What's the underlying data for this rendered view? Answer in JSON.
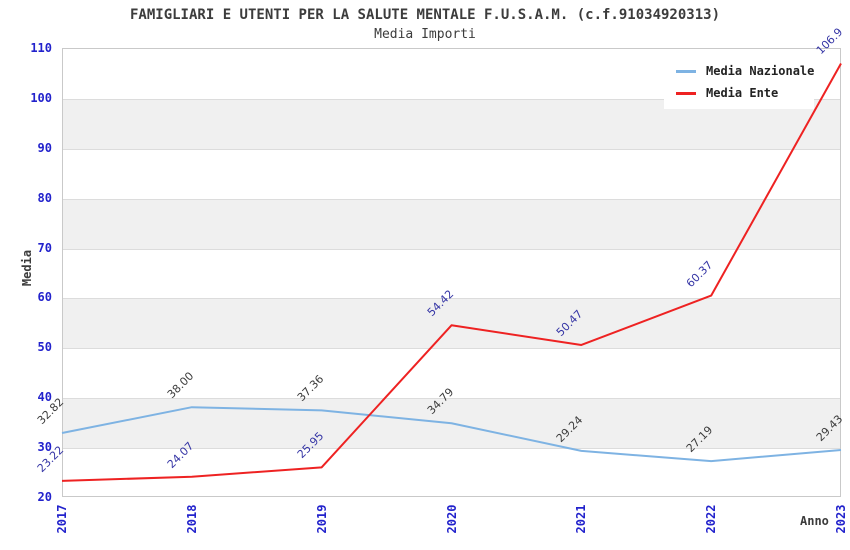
{
  "chart_data": {
    "type": "line",
    "title": "FAMIGLIARI E UTENTI PER LA SALUTE MENTALE F.U.S.A.M. (c.f.91034920313)",
    "subtitle": "Media Importi",
    "xlabel": "Anno",
    "ylabel": "Media",
    "x": [
      "2017",
      "2018",
      "2019",
      "2020",
      "2021",
      "2022",
      "2023"
    ],
    "ylim": [
      20,
      110
    ],
    "ytick_step": 10,
    "grid": "horizontal-bands",
    "legend_position": "top-right-inside",
    "tick_color": "#2222cc",
    "band_color": "#f0f0f0",
    "series": [
      {
        "name": "Media Nazionale",
        "color": "#7eb3e3",
        "label_color": "#3c3c3c",
        "values": [
          32.82,
          38.0,
          37.36,
          34.79,
          29.24,
          27.19,
          29.43
        ],
        "labels": [
          "32.82",
          "38.00",
          "37.36",
          "34.79",
          "29.24",
          "27.19",
          "29.43"
        ]
      },
      {
        "name": "Media Ente",
        "color": "#ee2222",
        "label_color": "#3535a5",
        "values": [
          23.22,
          24.07,
          25.95,
          54.42,
          50.47,
          60.37,
          106.9
        ],
        "labels": [
          "23.22",
          "24.07",
          "25.95",
          "54.42",
          "50.47",
          "60.37",
          "106.9"
        ]
      }
    ]
  }
}
